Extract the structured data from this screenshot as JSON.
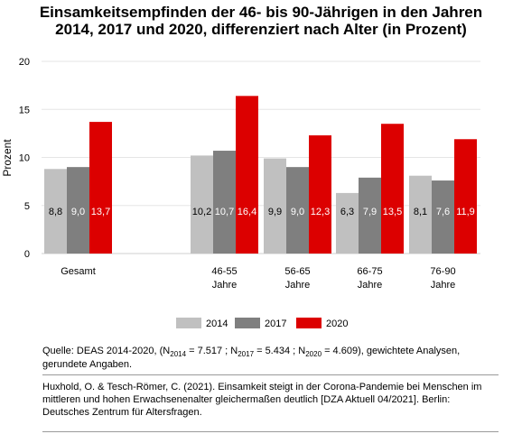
{
  "title_line1": "Einsamkeitsempfinden der 46- bis 90-Jährigen in den Jahren",
  "title_line2": "2014, 2017 und 2020, differenziert nach Alter (in Prozent)",
  "chart_data": {
    "type": "bar",
    "ylabel": "Prozent",
    "ylim": [
      0,
      20
    ],
    "yticks": [
      0,
      5,
      10,
      15,
      20
    ],
    "grid": true,
    "legend_position": "bottom",
    "categories": [
      [
        "Gesamt"
      ],
      [
        "46-55",
        "Jahre"
      ],
      [
        "56-65",
        "Jahre"
      ],
      [
        "66-75",
        "Jahre"
      ],
      [
        "76-90",
        "Jahre"
      ]
    ],
    "series": [
      {
        "name": "2014",
        "color": "#c0c0c0",
        "values": [
          8.8,
          10.2,
          9.9,
          6.3,
          8.1
        ],
        "labels": [
          "8,8",
          "10,2",
          "9,9",
          "6,3",
          "8,1"
        ],
        "label_color": "#000000"
      },
      {
        "name": "2017",
        "color": "#7f7f7f",
        "values": [
          9.0,
          10.7,
          9.0,
          7.9,
          7.6
        ],
        "labels": [
          "9,0",
          "10,7",
          "9,0",
          "7,9",
          "7,6"
        ],
        "label_color": "#ffffff"
      },
      {
        "name": "2020",
        "color": "#dc0000",
        "values": [
          13.7,
          16.4,
          12.3,
          13.5,
          11.9
        ],
        "labels": [
          "13,7",
          "16,4",
          "12,3",
          "13,5",
          "11,9"
        ],
        "label_color": "#ffffff"
      }
    ]
  },
  "source": {
    "prefix": "Quelle: DEAS 2014-2020, (N",
    "n1_sub": "2014",
    "n1_val": " = 7.517 ; N",
    "n2_sub": "2017",
    "n2_val": " = 5.434 ; N",
    "n3_sub": "2020",
    "n3_val": " = 4.609), gewichtete Analysen, gerundete Angaben."
  },
  "citation": "Huxhold, O. & Tesch-Römer, C. (2021). Einsamkeit steigt in der Corona-Pandemie bei Menschen im mittleren und hohen Erwachsenenalter gleichermaßen deutlich [DZA Aktuell 04/2021]. Berlin: Deutsches Zentrum für Altersfragen."
}
